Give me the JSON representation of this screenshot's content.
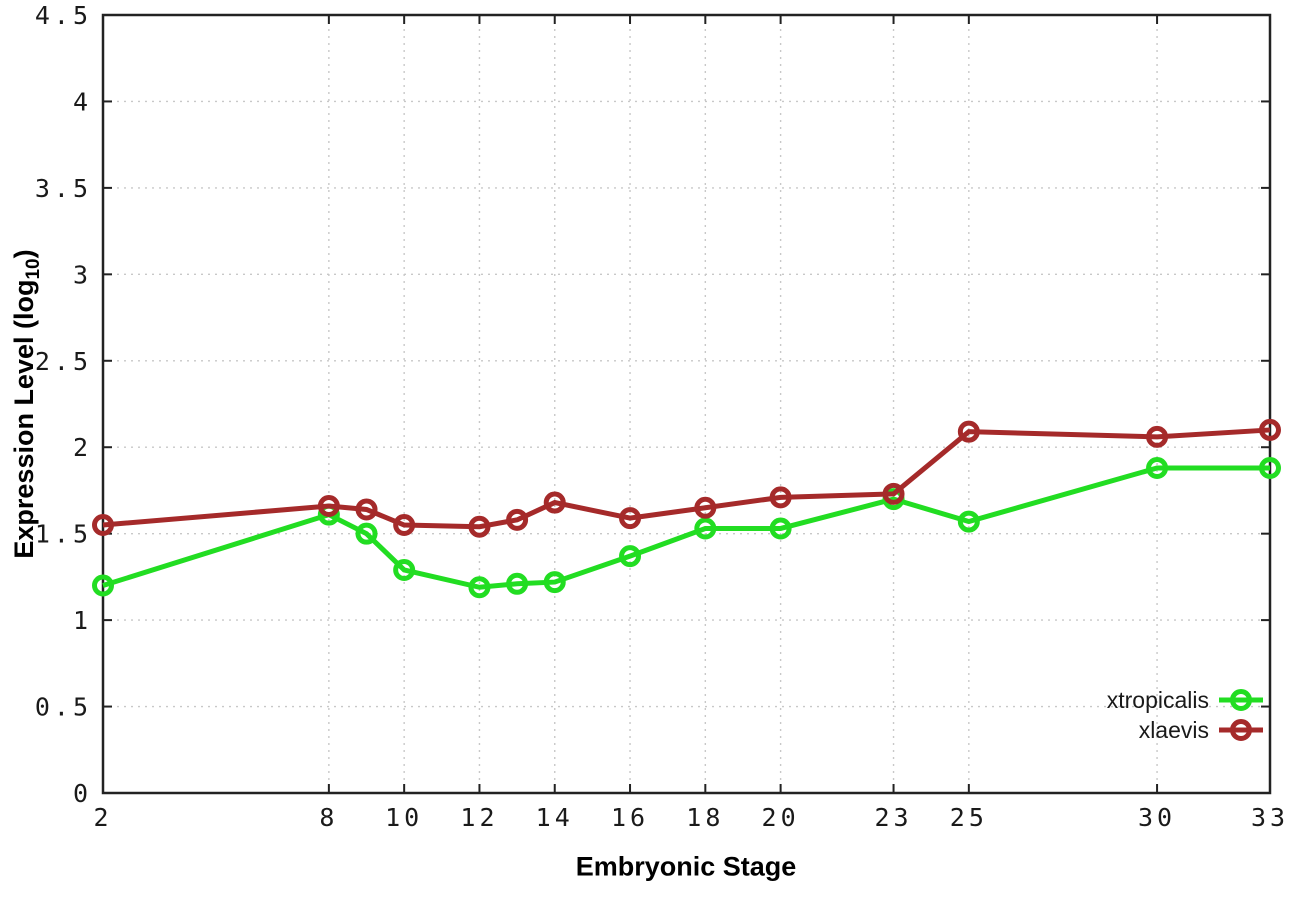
{
  "chart_data": {
    "type": "line",
    "title": "",
    "xlabel": "Embryonic Stage",
    "ylabel_parts": {
      "prefix": "Expression Level (log",
      "sub": "10",
      "suffix": ")"
    },
    "x": [
      2,
      8,
      9,
      10,
      12,
      13,
      14,
      16,
      18,
      20,
      23,
      25,
      30,
      33
    ],
    "xticks": [
      2,
      8,
      10,
      12,
      14,
      16,
      18,
      20,
      23,
      25,
      30,
      33
    ],
    "yticks": [
      "0",
      "0.5",
      "1",
      "1.5",
      "2",
      "2.5",
      "3",
      "3.5",
      "4",
      "4.5"
    ],
    "xlim": [
      2,
      33
    ],
    "ylim": [
      0,
      4.5
    ],
    "grid": true,
    "legend_position": "bottom-right",
    "series": [
      {
        "name": "xtropicalis",
        "color": "#22dd22",
        "values": [
          1.2,
          1.61,
          1.5,
          1.29,
          1.19,
          1.21,
          1.22,
          1.37,
          1.53,
          1.53,
          1.7,
          1.57,
          1.88,
          1.88
        ]
      },
      {
        "name": "xlaevis",
        "color": "#a52a2a",
        "values": [
          1.55,
          1.66,
          1.64,
          1.55,
          1.54,
          1.58,
          1.68,
          1.59,
          1.65,
          1.71,
          1.73,
          2.09,
          2.06,
          2.1
        ]
      }
    ],
    "styles": {
      "background": "#ffffff",
      "grid_color": "#c8c8c8",
      "frame_color": "#222222",
      "text_color": "#1a1a1a"
    }
  }
}
